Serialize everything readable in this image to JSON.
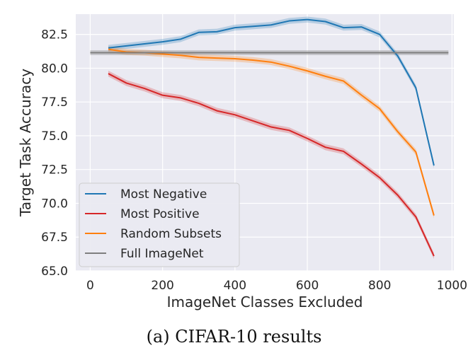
{
  "caption": "(a) CIFAR-10 results",
  "chart_data": {
    "type": "line",
    "xlabel": "ImageNet Classes Excluded",
    "ylabel": "Target Task Accuracy",
    "xlim": [
      -40,
      1005
    ],
    "ylim": [
      65.0,
      84.0
    ],
    "xticks": [
      0,
      200,
      400,
      600,
      800,
      1000
    ],
    "yticks": [
      65.0,
      67.5,
      70.0,
      72.5,
      75.0,
      77.5,
      80.0,
      82.5
    ],
    "ytick_labels": [
      "65.0",
      "67.5",
      "70.0",
      "72.5",
      "75.0",
      "77.5",
      "80.0",
      "82.5"
    ],
    "grid": true,
    "legend_position": "lower-left",
    "x": [
      50,
      100,
      150,
      200,
      250,
      300,
      350,
      400,
      450,
      500,
      550,
      600,
      650,
      700,
      750,
      800,
      850,
      900,
      950
    ],
    "series": [
      {
        "name": "Most Negative",
        "color": "#1f77b4",
        "values": [
          81.5,
          81.65,
          81.8,
          81.95,
          82.15,
          82.65,
          82.7,
          83.0,
          83.1,
          83.2,
          83.5,
          83.6,
          83.45,
          83.0,
          83.05,
          82.5,
          80.9,
          78.55,
          72.8
        ]
      },
      {
        "name": "Most Positive",
        "color": "#d62728",
        "values": [
          79.6,
          78.9,
          78.5,
          78.0,
          77.8,
          77.4,
          76.85,
          76.55,
          76.1,
          75.65,
          75.4,
          74.8,
          74.15,
          73.85,
          72.9,
          71.9,
          70.6,
          69.0,
          66.1
        ]
      },
      {
        "name": "Random Subsets",
        "color": "#ff7f0e",
        "values": [
          81.4,
          81.2,
          81.15,
          81.05,
          80.95,
          80.8,
          80.75,
          80.7,
          80.6,
          80.45,
          80.15,
          79.8,
          79.4,
          79.05,
          78.0,
          77.0,
          75.3,
          73.8,
          69.1
        ]
      },
      {
        "name": "Full ImageNet",
        "color": "#7f7f7f",
        "x_range": [
          0,
          990
        ],
        "value": 81.15
      }
    ]
  }
}
